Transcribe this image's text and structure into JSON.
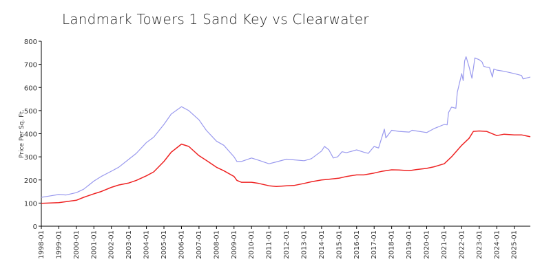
{
  "chart_data": {
    "type": "line",
    "title": "Landmark Towers 1 Sand Key vs Clearwater",
    "xlabel": "",
    "ylabel": "Price Per Sq. Ft.",
    "ylim": [
      0,
      800
    ],
    "yticks": [
      0,
      100,
      200,
      300,
      400,
      500,
      600,
      700,
      800
    ],
    "x_tick_labels": [
      "1998-01",
      "1999-01",
      "2000-01",
      "2001-01",
      "2002-01",
      "2003-01",
      "2004-01",
      "2005-01",
      "2006-01",
      "2007-01",
      "2008-01",
      "2009-01",
      "2010-01",
      "2011-01",
      "2012-01",
      "2013-01",
      "2014-01",
      "2015-01",
      "2016-01",
      "2017-01",
      "2018-01",
      "2019-01",
      "2020-01",
      "2021-01",
      "2022-01",
      "2023-01",
      "2024-01",
      "2025-01"
    ],
    "x_range": [
      "1998-01",
      "2025-12"
    ],
    "grid": false,
    "legend": "none",
    "series": [
      {
        "color": "#9999ee",
        "points": [
          [
            "1998-01",
            125
          ],
          [
            "1998-06",
            130
          ],
          [
            "1999-01",
            137
          ],
          [
            "1999-06",
            135
          ],
          [
            "2000-01",
            145
          ],
          [
            "2000-06",
            160
          ],
          [
            "2001-01",
            195
          ],
          [
            "2001-06",
            215
          ],
          [
            "2002-01",
            238
          ],
          [
            "2002-06",
            255
          ],
          [
            "2003-01",
            290
          ],
          [
            "2003-06",
            315
          ],
          [
            "2004-01",
            362
          ],
          [
            "2004-06",
            385
          ],
          [
            "2005-01",
            440
          ],
          [
            "2005-06",
            485
          ],
          [
            "2006-01",
            517
          ],
          [
            "2006-06",
            500
          ],
          [
            "2007-01",
            460
          ],
          [
            "2007-06",
            415
          ],
          [
            "2008-01",
            368
          ],
          [
            "2008-06",
            350
          ],
          [
            "2009-01",
            300
          ],
          [
            "2009-03",
            280
          ],
          [
            "2009-06",
            280
          ],
          [
            "2010-01",
            295
          ],
          [
            "2010-06",
            285
          ],
          [
            "2011-01",
            270
          ],
          [
            "2011-06",
            278
          ],
          [
            "2012-01",
            290
          ],
          [
            "2012-06",
            287
          ],
          [
            "2013-01",
            283
          ],
          [
            "2013-06",
            292
          ],
          [
            "2014-01",
            325
          ],
          [
            "2014-03",
            345
          ],
          [
            "2014-06",
            330
          ],
          [
            "2014-09",
            295
          ],
          [
            "2014-12",
            300
          ],
          [
            "2015-03",
            322
          ],
          [
            "2015-06",
            318
          ],
          [
            "2016-01",
            330
          ],
          [
            "2016-06",
            320
          ],
          [
            "2016-09",
            315
          ],
          [
            "2017-01",
            345
          ],
          [
            "2017-04",
            338
          ],
          [
            "2017-08",
            420
          ],
          [
            "2017-09",
            382
          ],
          [
            "2018-01",
            415
          ],
          [
            "2018-06",
            410
          ],
          [
            "2019-01",
            407
          ],
          [
            "2019-03",
            415
          ],
          [
            "2019-06",
            412
          ],
          [
            "2020-01",
            405
          ],
          [
            "2020-06",
            422
          ],
          [
            "2021-01",
            440
          ],
          [
            "2021-03",
            438
          ],
          [
            "2021-04",
            492
          ],
          [
            "2021-06",
            515
          ],
          [
            "2021-09",
            510
          ],
          [
            "2021-10",
            580
          ],
          [
            "2022-01",
            660
          ],
          [
            "2022-02",
            630
          ],
          [
            "2022-03",
            715
          ],
          [
            "2022-04",
            733
          ],
          [
            "2022-06",
            690
          ],
          [
            "2022-08",
            640
          ],
          [
            "2022-10",
            728
          ],
          [
            "2023-01",
            720
          ],
          [
            "2023-03",
            710
          ],
          [
            "2023-04",
            692
          ],
          [
            "2023-06",
            688
          ],
          [
            "2023-08",
            686
          ],
          [
            "2023-10",
            645
          ],
          [
            "2023-11",
            680
          ],
          [
            "2024-01",
            675
          ],
          [
            "2024-06",
            670
          ],
          [
            "2025-01",
            660
          ],
          [
            "2025-06",
            652
          ],
          [
            "2025-07",
            637
          ],
          [
            "2025-12",
            645
          ]
        ]
      },
      {
        "color": "#ee2222",
        "points": [
          [
            "1998-01",
            99
          ],
          [
            "1999-01",
            102
          ],
          [
            "2000-01",
            112
          ],
          [
            "2000-06",
            125
          ],
          [
            "2001-01",
            140
          ],
          [
            "2001-06",
            150
          ],
          [
            "2002-01",
            168
          ],
          [
            "2002-06",
            178
          ],
          [
            "2003-01",
            187
          ],
          [
            "2003-06",
            198
          ],
          [
            "2004-01",
            218
          ],
          [
            "2004-06",
            235
          ],
          [
            "2005-01",
            280
          ],
          [
            "2005-06",
            320
          ],
          [
            "2006-01",
            355
          ],
          [
            "2006-06",
            345
          ],
          [
            "2007-01",
            305
          ],
          [
            "2007-06",
            285
          ],
          [
            "2008-01",
            255
          ],
          [
            "2008-06",
            240
          ],
          [
            "2009-01",
            215
          ],
          [
            "2009-03",
            198
          ],
          [
            "2009-06",
            190
          ],
          [
            "2010-01",
            190
          ],
          [
            "2010-06",
            185
          ],
          [
            "2011-01",
            175
          ],
          [
            "2011-06",
            172
          ],
          [
            "2012-01",
            175
          ],
          [
            "2012-06",
            176
          ],
          [
            "2013-01",
            185
          ],
          [
            "2013-06",
            192
          ],
          [
            "2014-01",
            200
          ],
          [
            "2014-06",
            203
          ],
          [
            "2015-01",
            208
          ],
          [
            "2015-06",
            215
          ],
          [
            "2016-01",
            222
          ],
          [
            "2016-06",
            222
          ],
          [
            "2017-01",
            230
          ],
          [
            "2017-06",
            237
          ],
          [
            "2018-01",
            244
          ],
          [
            "2018-06",
            243
          ],
          [
            "2019-01",
            240
          ],
          [
            "2019-06",
            245
          ],
          [
            "2020-01",
            250
          ],
          [
            "2020-06",
            257
          ],
          [
            "2021-01",
            270
          ],
          [
            "2021-06",
            300
          ],
          [
            "2022-01",
            350
          ],
          [
            "2022-06",
            380
          ],
          [
            "2022-09",
            410
          ],
          [
            "2023-01",
            412
          ],
          [
            "2023-06",
            410
          ],
          [
            "2024-01",
            392
          ],
          [
            "2024-06",
            398
          ],
          [
            "2025-01",
            395
          ],
          [
            "2025-06",
            395
          ],
          [
            "2025-12",
            387
          ]
        ]
      }
    ]
  }
}
